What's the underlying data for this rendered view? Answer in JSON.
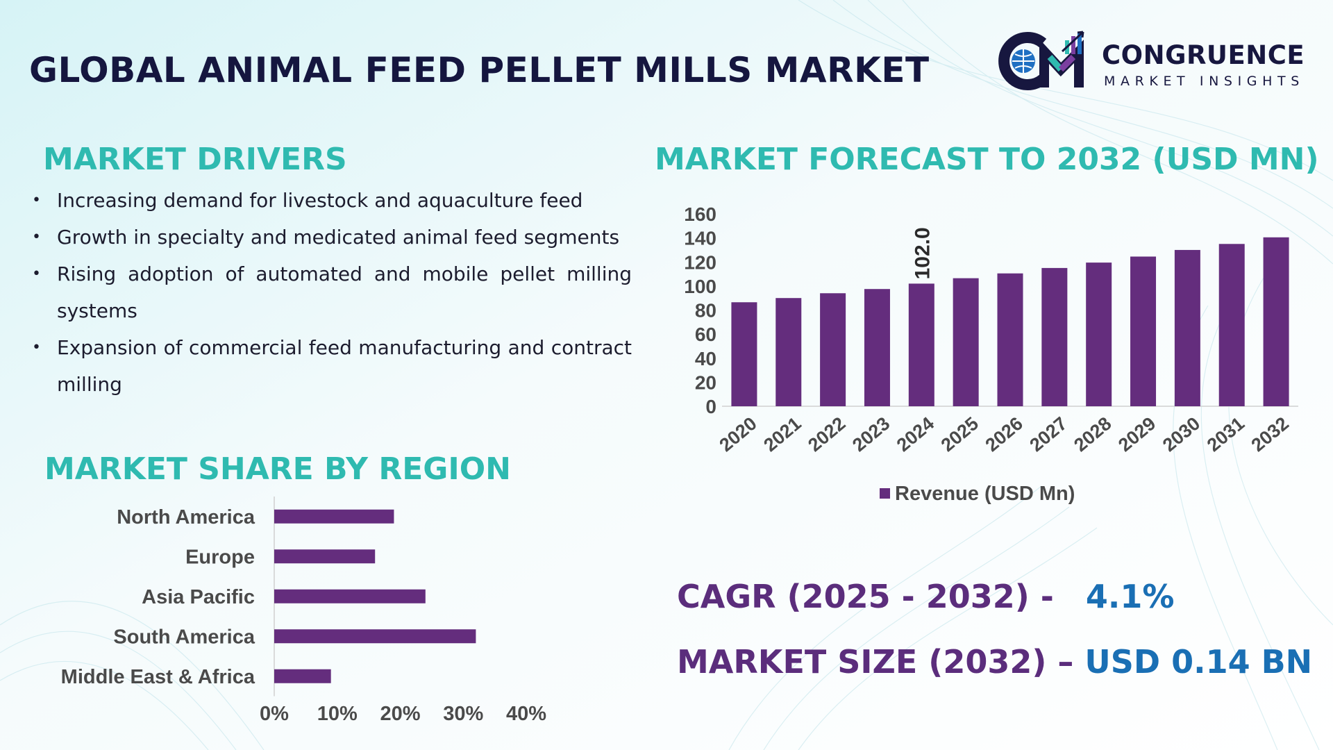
{
  "header": {
    "title": "GLOBAL ANIMAL FEED PELLET MILLS MARKET"
  },
  "logo": {
    "name": "CONGRUENCE",
    "tagline": "MARKET INSIGHTS",
    "icon": "cmi-logo-icon"
  },
  "drivers": {
    "title": "MARKET DRIVERS",
    "items": [
      "Increasing demand for livestock and aquaculture feed",
      "Growth in specialty and medicated animal feed segments",
      "Rising adoption of automated and mobile pellet milling systems",
      "Expansion of commercial feed manufacturing and contract milling"
    ]
  },
  "forecast": {
    "title": "MARKET FORECAST TO 2032 (USD MN)"
  },
  "region": {
    "title": "MARKET SHARE BY REGION"
  },
  "kpis": {
    "cagr_label": "CAGR (2025 - 2032) -",
    "cagr_value": "4.1%",
    "size_label": "MARKET SIZE (2032) –",
    "size_value": "USD 0.14 BN"
  },
  "colors": {
    "accent_teal": "#2fbab0",
    "bar_purple": "#642d7d",
    "kpi_purple": "#5b2d7c",
    "kpi_blue": "#1a6fb4",
    "title_navy": "#15163f"
  },
  "chart_data": [
    {
      "type": "bar",
      "title": "MARKET FORECAST TO 2032 (USD MN)",
      "categories": [
        "2020",
        "2021",
        "2022",
        "2023",
        "2024",
        "2025",
        "2026",
        "2027",
        "2028",
        "2029",
        "2030",
        "2031",
        "2032"
      ],
      "series": [
        {
          "name": "Revenue (USD Mn)",
          "values": [
            86.5,
            90.0,
            94.0,
            97.5,
            102.0,
            106.5,
            110.5,
            115.0,
            119.5,
            124.5,
            130.0,
            135.0,
            140.5
          ]
        }
      ],
      "data_labels": [
        {
          "category": "2024",
          "text": "102.0"
        }
      ],
      "yticks": [
        "0",
        "20",
        "40",
        "60",
        "80",
        "100",
        "120",
        "140",
        "160"
      ],
      "ylim": [
        0,
        160
      ],
      "xlabel": "",
      "ylabel": "",
      "legend": "bottom",
      "grid": false
    },
    {
      "type": "bar",
      "orientation": "horizontal",
      "title": "MARKET SHARE BY REGION",
      "categories": [
        "North America",
        "Europe",
        "Asia Pacific",
        "South America",
        "Middle East & Africa"
      ],
      "values": [
        19,
        16,
        24,
        32,
        9
      ],
      "xticks": [
        "0%",
        "10%",
        "20%",
        "30%",
        "40%"
      ],
      "xlim": [
        0,
        40
      ],
      "unit": "%",
      "grid": false
    }
  ]
}
